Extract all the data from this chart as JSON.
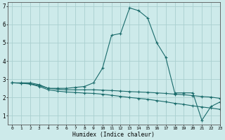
{
  "xlabel": "Humidex (Indice chaleur)",
  "background_color": "#cdeaea",
  "grid_color": "#aacfcf",
  "line_color": "#1a6b6b",
  "xlim": [
    -0.5,
    23
  ],
  "ylim": [
    0.5,
    7.2
  ],
  "yticks": [
    1,
    2,
    3,
    4,
    5,
    6,
    7
  ],
  "xtick_labels": [
    "0",
    "1",
    "2",
    "3",
    "4",
    "5",
    "6",
    "7",
    "8",
    "9",
    "10",
    "11",
    "12",
    "13",
    "14",
    "15",
    "16",
    "17",
    "18",
    "19",
    "20",
    "21",
    "22",
    "23"
  ],
  "series": [
    [
      2.8,
      2.8,
      2.8,
      2.7,
      2.5,
      2.5,
      2.5,
      2.55,
      2.6,
      2.8,
      3.6,
      5.4,
      5.5,
      6.9,
      6.75,
      6.35,
      5.0,
      4.2,
      2.25,
      2.25,
      2.25,
      0.75,
      1.5,
      1.75
    ],
    [
      2.8,
      2.78,
      2.75,
      2.65,
      2.5,
      2.45,
      2.42,
      2.42,
      2.42,
      2.42,
      2.4,
      2.38,
      2.35,
      2.32,
      2.3,
      2.28,
      2.25,
      2.22,
      2.18,
      2.15,
      2.1,
      2.05,
      2.02,
      1.95
    ],
    [
      2.8,
      2.78,
      2.73,
      2.6,
      2.42,
      2.35,
      2.3,
      2.27,
      2.24,
      2.22,
      2.18,
      2.12,
      2.06,
      2.0,
      1.95,
      1.9,
      1.83,
      1.76,
      1.68,
      1.62,
      1.54,
      1.48,
      1.42,
      1.35
    ]
  ]
}
